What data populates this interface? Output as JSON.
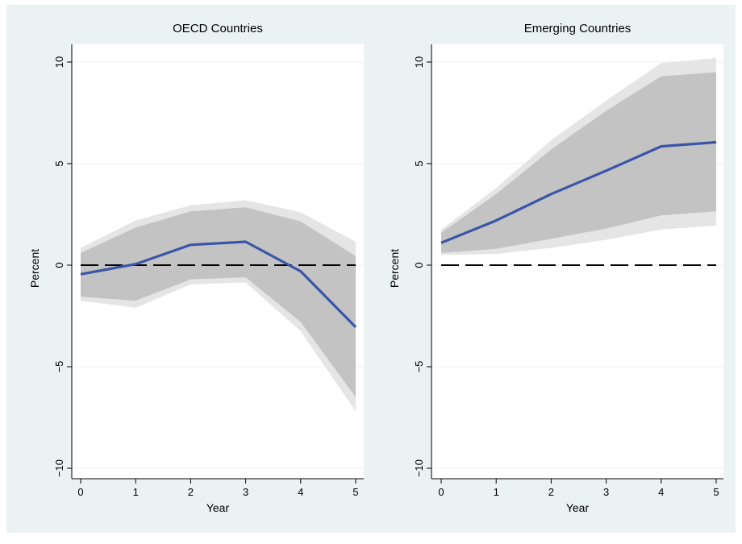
{
  "chart_data": [
    {
      "type": "line",
      "title": "OECD Countries",
      "xlabel": "Year",
      "ylabel": "Percent",
      "xlim": [
        0,
        5
      ],
      "ylim": [
        -10,
        10
      ],
      "x_ticks": [
        0,
        1,
        2,
        3,
        4,
        5
      ],
      "y_ticks": [
        -10,
        -5,
        0,
        5,
        10
      ],
      "x_tick_labels": [
        "0",
        "1",
        "2",
        "3",
        "4",
        "5"
      ],
      "y_tick_labels": [
        "−10",
        "−5",
        "0",
        "5",
        "10"
      ],
      "grid": true,
      "reference_line": 0,
      "x": [
        0,
        1,
        2,
        3,
        4,
        5
      ],
      "estimate": [
        -0.45,
        0.05,
        1.0,
        1.15,
        -0.3,
        -3.05
      ],
      "band_90": {
        "lower": [
          -1.55,
          -1.75,
          -0.7,
          -0.6,
          -2.8,
          -6.5
        ],
        "upper": [
          0.6,
          1.85,
          2.65,
          2.85,
          2.15,
          0.45
        ]
      },
      "band_95": {
        "lower": [
          -1.75,
          -2.1,
          -0.95,
          -0.85,
          -3.25,
          -7.2
        ],
        "upper": [
          0.85,
          2.2,
          2.95,
          3.2,
          2.6,
          1.15
        ]
      },
      "colors": {
        "line": "#3a55a8",
        "band_90": "#c3c3c3",
        "band_95": "#e5e5e5",
        "plot_bg": "#ffffff",
        "ref_line": "#000000"
      }
    },
    {
      "type": "line",
      "title": "Emerging Countries",
      "xlabel": "Year",
      "ylabel": "Percent",
      "xlim": [
        0,
        5
      ],
      "ylim": [
        -10,
        10
      ],
      "x_ticks": [
        0,
        1,
        2,
        3,
        4,
        5
      ],
      "y_ticks": [
        -10,
        -5,
        0,
        5,
        10
      ],
      "x_tick_labels": [
        "0",
        "1",
        "2",
        "3",
        "4",
        "5"
      ],
      "y_tick_labels": [
        "−10",
        "−5",
        "0",
        "5",
        "10"
      ],
      "grid": true,
      "reference_line": 0,
      "x": [
        0,
        1,
        2,
        3,
        4,
        5
      ],
      "estimate": [
        1.1,
        2.2,
        3.5,
        4.65,
        5.85,
        6.05
      ],
      "band_90": {
        "lower": [
          0.6,
          0.8,
          1.3,
          1.8,
          2.45,
          2.65
        ],
        "upper": [
          1.6,
          3.5,
          5.7,
          7.6,
          9.3,
          9.5
        ]
      },
      "band_95": {
        "lower": [
          0.5,
          0.55,
          0.85,
          1.25,
          1.75,
          1.95
        ],
        "upper": [
          1.75,
          3.8,
          6.15,
          8.1,
          9.95,
          10.2
        ]
      },
      "colors": {
        "line": "#3a55a8",
        "band_90": "#c3c3c3",
        "band_95": "#e5e5e5",
        "plot_bg": "#ffffff",
        "ref_line": "#000000"
      }
    }
  ]
}
